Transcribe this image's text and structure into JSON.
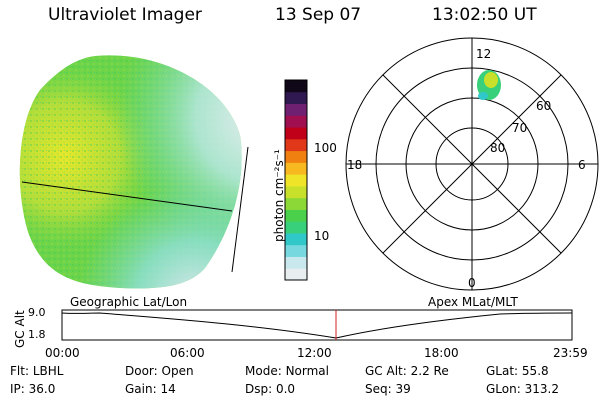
{
  "header": {
    "title": "Ultraviolet Imager",
    "date": "13 Sep 07",
    "time": "13:02:50 UT"
  },
  "colorbar": {
    "label": "photon cm⁻²s⁻¹",
    "tick_labels": [
      "100",
      "10"
    ],
    "colors": [
      "#e8eef0",
      "#c8e8ee",
      "#78d8e0",
      "#30c8c8",
      "#38d07a",
      "#4ad04a",
      "#8cd836",
      "#c8e02a",
      "#f0e428",
      "#f8b820",
      "#f08010",
      "#e03818",
      "#c00018",
      "#a01050",
      "#702070",
      "#301850",
      "#100818"
    ]
  },
  "polar": {
    "mlt_labels": [
      "12",
      "18",
      "6",
      "0"
    ],
    "lat_labels": [
      "60",
      "70",
      "80"
    ]
  },
  "timeline": {
    "left_label": "Geographic Lat/Lon",
    "right_label": "Apex MLat/MLT",
    "ylabel": "GC Alt",
    "y_ticks": [
      "9.0",
      "1.8"
    ],
    "x_ticks": [
      "00:00",
      "06:00",
      "12:00",
      "18:00",
      "23:59"
    ],
    "current_time_color": "#cc2020"
  },
  "status": {
    "row1": [
      {
        "label": "Flt:",
        "value": "LBHL"
      },
      {
        "label": "Door:",
        "value": "Open"
      },
      {
        "label": "Mode:",
        "value": "Normal"
      },
      {
        "label": "GC Alt:",
        "value": "2.2 Re"
      },
      {
        "label": "GLat:",
        "value": "55.8"
      }
    ],
    "row2": [
      {
        "label": "IP:",
        "value": "36.0"
      },
      {
        "label": "Gain:",
        "value": "14"
      },
      {
        "label": "Dsp:",
        "value": "0.0"
      },
      {
        "label": "Seq:",
        "value": "39"
      },
      {
        "label": "GLon:",
        "value": "313.2"
      }
    ]
  }
}
